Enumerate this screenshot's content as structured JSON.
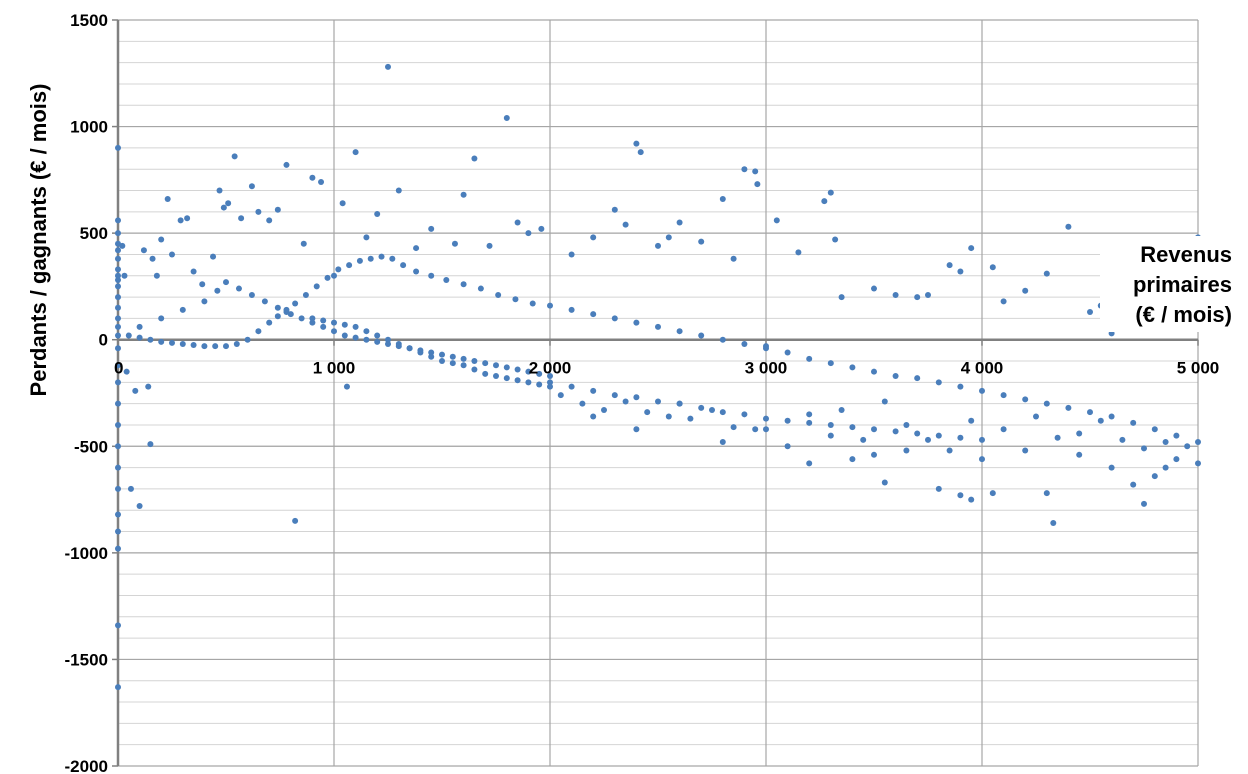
{
  "chart_data": {
    "type": "scatter",
    "xlabel": [
      "Revenus",
      "primaires",
      "(€ / mois)"
    ],
    "ylabel": "Perdants / gagnants (€ / mois)",
    "xlim": [
      0,
      5000
    ],
    "ylim": [
      -2000,
      1500
    ],
    "x_ticks": [
      0,
      1000,
      2000,
      3000,
      4000,
      5000
    ],
    "x_tick_labels": [
      "0",
      "1 000",
      "2 000",
      "3 000",
      "4 000",
      "5 000"
    ],
    "y_ticks": [
      -2000,
      -1500,
      -1000,
      -500,
      0,
      500,
      1000,
      1500
    ],
    "y_tick_labels": [
      "-2000",
      "-1500",
      "-1000",
      "-500",
      "0",
      "500",
      "1000",
      "1500"
    ],
    "minor_gridlines_y_step": 100,
    "grid": true,
    "marker_color": "#4a7ebb",
    "points": [
      [
        0,
        900
      ],
      [
        0,
        560
      ],
      [
        0,
        500
      ],
      [
        0,
        450
      ],
      [
        0,
        420
      ],
      [
        0,
        380
      ],
      [
        0,
        330
      ],
      [
        0,
        300
      ],
      [
        0,
        280
      ],
      [
        0,
        250
      ],
      [
        0,
        200
      ],
      [
        0,
        150
      ],
      [
        0,
        100
      ],
      [
        0,
        60
      ],
      [
        0,
        20
      ],
      [
        0,
        -40
      ],
      [
        0,
        -120
      ],
      [
        0,
        -200
      ],
      [
        0,
        -300
      ],
      [
        0,
        -400
      ],
      [
        0,
        -500
      ],
      [
        0,
        -600
      ],
      [
        0,
        -700
      ],
      [
        0,
        -820
      ],
      [
        0,
        -900
      ],
      [
        0,
        -980
      ],
      [
        0,
        -1340
      ],
      [
        0,
        -1630
      ],
      [
        20,
        440
      ],
      [
        30,
        300
      ],
      [
        40,
        -150
      ],
      [
        60,
        -700
      ],
      [
        80,
        -240
      ],
      [
        100,
        -780
      ],
      [
        120,
        420
      ],
      [
        140,
        -220
      ],
      [
        150,
        -490
      ],
      [
        160,
        380
      ],
      [
        180,
        300
      ],
      [
        200,
        470
      ],
      [
        230,
        660
      ],
      [
        250,
        400
      ],
      [
        290,
        560
      ],
      [
        320,
        570
      ],
      [
        350,
        320
      ],
      [
        390,
        260
      ],
      [
        440,
        390
      ],
      [
        470,
        700
      ],
      [
        490,
        620
      ],
      [
        510,
        640
      ],
      [
        540,
        860
      ],
      [
        570,
        570
      ],
      [
        620,
        720
      ],
      [
        650,
        600
      ],
      [
        700,
        560
      ],
      [
        740,
        610
      ],
      [
        780,
        820
      ],
      [
        820,
        -850
      ],
      [
        860,
        450
      ],
      [
        900,
        760
      ],
      [
        940,
        740
      ],
      [
        1000,
        300
      ],
      [
        1040,
        640
      ],
      [
        1060,
        -220
      ],
      [
        1100,
        880
      ],
      [
        1150,
        480
      ],
      [
        1200,
        590
      ],
      [
        1250,
        1280
      ],
      [
        1300,
        700
      ],
      [
        1380,
        430
      ],
      [
        1450,
        520
      ],
      [
        1560,
        450
      ],
      [
        1600,
        680
      ],
      [
        1650,
        850
      ],
      [
        1720,
        440
      ],
      [
        1800,
        1040
      ],
      [
        1850,
        550
      ],
      [
        1900,
        500
      ],
      [
        1960,
        520
      ],
      [
        2100,
        400
      ],
      [
        2200,
        480
      ],
      [
        2300,
        610
      ],
      [
        2350,
        540
      ],
      [
        2400,
        920
      ],
      [
        2420,
        880
      ],
      [
        2500,
        440
      ],
      [
        2550,
        480
      ],
      [
        2600,
        550
      ],
      [
        2700,
        460
      ],
      [
        2800,
        660
      ],
      [
        2850,
        380
      ],
      [
        2900,
        800
      ],
      [
        2950,
        790
      ],
      [
        2960,
        730
      ],
      [
        3050,
        560
      ],
      [
        3150,
        410
      ],
      [
        3270,
        650
      ],
      [
        3300,
        690
      ],
      [
        3320,
        470
      ],
      [
        3350,
        200
      ],
      [
        3500,
        240
      ],
      [
        3600,
        210
      ],
      [
        3700,
        200
      ],
      [
        3750,
        210
      ],
      [
        3850,
        350
      ],
      [
        3900,
        320
      ],
      [
        3950,
        430
      ],
      [
        4050,
        340
      ],
      [
        4100,
        180
      ],
      [
        4200,
        230
      ],
      [
        4300,
        310
      ],
      [
        4400,
        530
      ],
      [
        4500,
        130
      ],
      [
        4550,
        160
      ],
      [
        4600,
        30
      ],
      [
        4850,
        80
      ],
      [
        5000,
        480
      ],
      [
        100,
        60
      ],
      [
        200,
        100
      ],
      [
        300,
        140
      ],
      [
        400,
        180
      ],
      [
        460,
        230
      ],
      [
        500,
        270
      ],
      [
        560,
        240
      ],
      [
        620,
        210
      ],
      [
        680,
        180
      ],
      [
        740,
        150
      ],
      [
        780,
        130
      ],
      [
        50,
        20
      ],
      [
        100,
        10
      ],
      [
        150,
        0
      ],
      [
        200,
        -10
      ],
      [
        250,
        -15
      ],
      [
        300,
        -20
      ],
      [
        350,
        -25
      ],
      [
        400,
        -30
      ],
      [
        450,
        -30
      ],
      [
        500,
        -30
      ],
      [
        550,
        -20
      ],
      [
        600,
        0
      ],
      [
        650,
        40
      ],
      [
        700,
        80
      ],
      [
        740,
        110
      ],
      [
        780,
        140
      ],
      [
        820,
        170
      ],
      [
        870,
        210
      ],
      [
        920,
        250
      ],
      [
        970,
        290
      ],
      [
        1020,
        330
      ],
      [
        1070,
        350
      ],
      [
        1120,
        370
      ],
      [
        1170,
        380
      ],
      [
        1220,
        390
      ],
      [
        1270,
        380
      ],
      [
        1320,
        350
      ],
      [
        1380,
        320
      ],
      [
        1450,
        300
      ],
      [
        1520,
        280
      ],
      [
        1600,
        260
      ],
      [
        1680,
        240
      ],
      [
        1760,
        210
      ],
      [
        1840,
        190
      ],
      [
        1920,
        170
      ],
      [
        2000,
        160
      ],
      [
        2100,
        140
      ],
      [
        2200,
        120
      ],
      [
        2300,
        100
      ],
      [
        2400,
        80
      ],
      [
        2500,
        60
      ],
      [
        2600,
        40
      ],
      [
        2700,
        20
      ],
      [
        2800,
        0
      ],
      [
        2900,
        -20
      ],
      [
        3000,
        -40
      ],
      [
        800,
        120
      ],
      [
        850,
        100
      ],
      [
        900,
        80
      ],
      [
        950,
        60
      ],
      [
        1000,
        40
      ],
      [
        1050,
        20
      ],
      [
        1100,
        10
      ],
      [
        1150,
        0
      ],
      [
        1200,
        -10
      ],
      [
        1250,
        -20
      ],
      [
        1300,
        -30
      ],
      [
        1350,
        -40
      ],
      [
        1400,
        -50
      ],
      [
        1450,
        -60
      ],
      [
        1500,
        -70
      ],
      [
        1550,
        -80
      ],
      [
        1600,
        -90
      ],
      [
        1650,
        -100
      ],
      [
        1700,
        -110
      ],
      [
        1750,
        -120
      ],
      [
        1800,
        -130
      ],
      [
        1850,
        -140
      ],
      [
        1900,
        -150
      ],
      [
        1950,
        -160
      ],
      [
        2000,
        -170
      ],
      [
        900,
        100
      ],
      [
        950,
        90
      ],
      [
        1000,
        80
      ],
      [
        1050,
        70
      ],
      [
        1100,
        60
      ],
      [
        1150,
        40
      ],
      [
        1200,
        20
      ],
      [
        1250,
        0
      ],
      [
        1300,
        -20
      ],
      [
        1350,
        -40
      ],
      [
        1400,
        -60
      ],
      [
        1450,
        -80
      ],
      [
        1500,
        -100
      ],
      [
        1550,
        -110
      ],
      [
        1600,
        -120
      ],
      [
        1650,
        -140
      ],
      [
        1700,
        -160
      ],
      [
        1750,
        -170
      ],
      [
        1800,
        -180
      ],
      [
        1850,
        -190
      ],
      [
        1900,
        -200
      ],
      [
        1950,
        -210
      ],
      [
        2000,
        -220
      ],
      [
        2000,
        -200
      ],
      [
        2100,
        -220
      ],
      [
        2200,
        -240
      ],
      [
        2300,
        -260
      ],
      [
        2400,
        -270
      ],
      [
        2500,
        -290
      ],
      [
        2600,
        -300
      ],
      [
        2700,
        -320
      ],
      [
        2800,
        -340
      ],
      [
        2900,
        -350
      ],
      [
        3000,
        -370
      ],
      [
        3100,
        -380
      ],
      [
        3200,
        -390
      ],
      [
        3300,
        -400
      ],
      [
        3400,
        -410
      ],
      [
        3500,
        -420
      ],
      [
        3600,
        -430
      ],
      [
        3700,
        -440
      ],
      [
        3800,
        -450
      ],
      [
        3900,
        -460
      ],
      [
        4000,
        -470
      ],
      [
        3000,
        -30
      ],
      [
        3100,
        -60
      ],
      [
        3200,
        -90
      ],
      [
        3300,
        -110
      ],
      [
        3400,
        -130
      ],
      [
        3500,
        -150
      ],
      [
        3600,
        -170
      ],
      [
        3700,
        -180
      ],
      [
        3800,
        -200
      ],
      [
        3900,
        -220
      ],
      [
        4000,
        -240
      ],
      [
        4100,
        -260
      ],
      [
        4200,
        -280
      ],
      [
        4300,
        -300
      ],
      [
        4400,
        -320
      ],
      [
        4500,
        -340
      ],
      [
        4600,
        -360
      ],
      [
        4700,
        -390
      ],
      [
        4800,
        -420
      ],
      [
        4900,
        -450
      ],
      [
        5000,
        -480
      ],
      [
        2200,
        -360
      ],
      [
        2400,
        -420
      ],
      [
        2600,
        -300
      ],
      [
        2800,
        -480
      ],
      [
        3000,
        -420
      ],
      [
        3100,
        -500
      ],
      [
        3200,
        -580
      ],
      [
        3300,
        -450
      ],
      [
        3400,
        -560
      ],
      [
        3500,
        -540
      ],
      [
        3550,
        -670
      ],
      [
        3650,
        -520
      ],
      [
        3800,
        -700
      ],
      [
        3900,
        -730
      ],
      [
        3950,
        -750
      ],
      [
        4000,
        -560
      ],
      [
        4050,
        -720
      ],
      [
        4200,
        -520
      ],
      [
        4300,
        -720
      ],
      [
        4330,
        -860
      ],
      [
        4450,
        -540
      ],
      [
        4600,
        -600
      ],
      [
        4700,
        -680
      ],
      [
        4750,
        -770
      ],
      [
        4800,
        -640
      ],
      [
        4850,
        -600
      ],
      [
        4900,
        -560
      ],
      [
        5000,
        -580
      ],
      [
        3200,
        -350
      ],
      [
        3350,
        -330
      ],
      [
        3450,
        -470
      ],
      [
        3550,
        -290
      ],
      [
        3650,
        -400
      ],
      [
        3750,
        -470
      ],
      [
        3850,
        -520
      ],
      [
        3950,
        -380
      ],
      [
        4100,
        -420
      ],
      [
        4250,
        -360
      ],
      [
        4350,
        -460
      ],
      [
        4450,
        -440
      ],
      [
        4550,
        -380
      ],
      [
        4650,
        -470
      ],
      [
        4750,
        -510
      ],
      [
        4850,
        -480
      ],
      [
        4950,
        -500
      ],
      [
        2050,
        -260
      ],
      [
        2150,
        -300
      ],
      [
        2250,
        -330
      ],
      [
        2350,
        -290
      ],
      [
        2450,
        -340
      ],
      [
        2550,
        -360
      ],
      [
        2650,
        -370
      ],
      [
        2750,
        -330
      ],
      [
        2850,
        -410
      ],
      [
        2950,
        -420
      ]
    ]
  }
}
